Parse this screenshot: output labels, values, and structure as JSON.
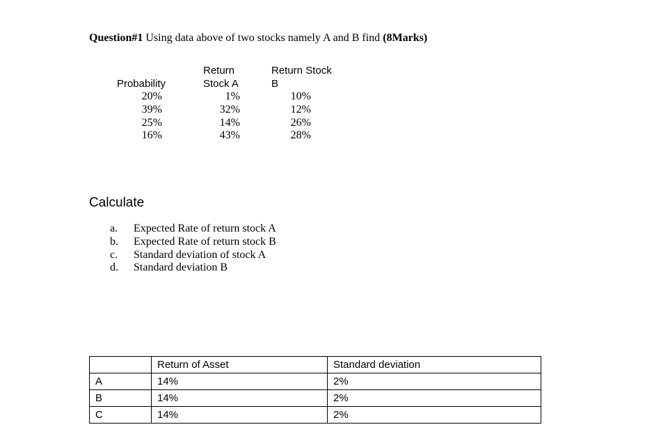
{
  "title": {
    "question_label": "Question#1",
    "body": " Using data above of two stocks namely A and B find ",
    "marks": "(8Marks)"
  },
  "stocks_table": {
    "columns": [
      {
        "header_line1": "",
        "header_line2": "Probability",
        "values": [
          "20%",
          "39%",
          "25%",
          "16%"
        ]
      },
      {
        "header_line1": "Return",
        "header_line2": "Stock A",
        "values": [
          "1%",
          "32%",
          "14%",
          "43%"
        ]
      },
      {
        "header_line1": "Return Stock",
        "header_line2": "B",
        "values": [
          "10%",
          "12%",
          "26%",
          "28%"
        ]
      }
    ]
  },
  "calculate": {
    "heading": "Calculate",
    "items": [
      {
        "marker": "a.",
        "text": "Expected Rate of return stock A"
      },
      {
        "marker": "b.",
        "text": "Expected Rate of return stock B"
      },
      {
        "marker": "c.",
        "text": "Standard deviation of stock A"
      },
      {
        "marker": "d.",
        "text": "Standard deviation B"
      }
    ]
  },
  "results_table": {
    "headers": [
      "",
      "Return of Asset",
      "Standard deviation"
    ],
    "rows": [
      {
        "label": "A",
        "return_of_asset": "14%",
        "standard_deviation": "2%"
      },
      {
        "label": "B",
        "return_of_asset": "14%",
        "standard_deviation": "2%"
      },
      {
        "label": "C",
        "return_of_asset": "14%",
        "standard_deviation": "2%"
      }
    ]
  }
}
